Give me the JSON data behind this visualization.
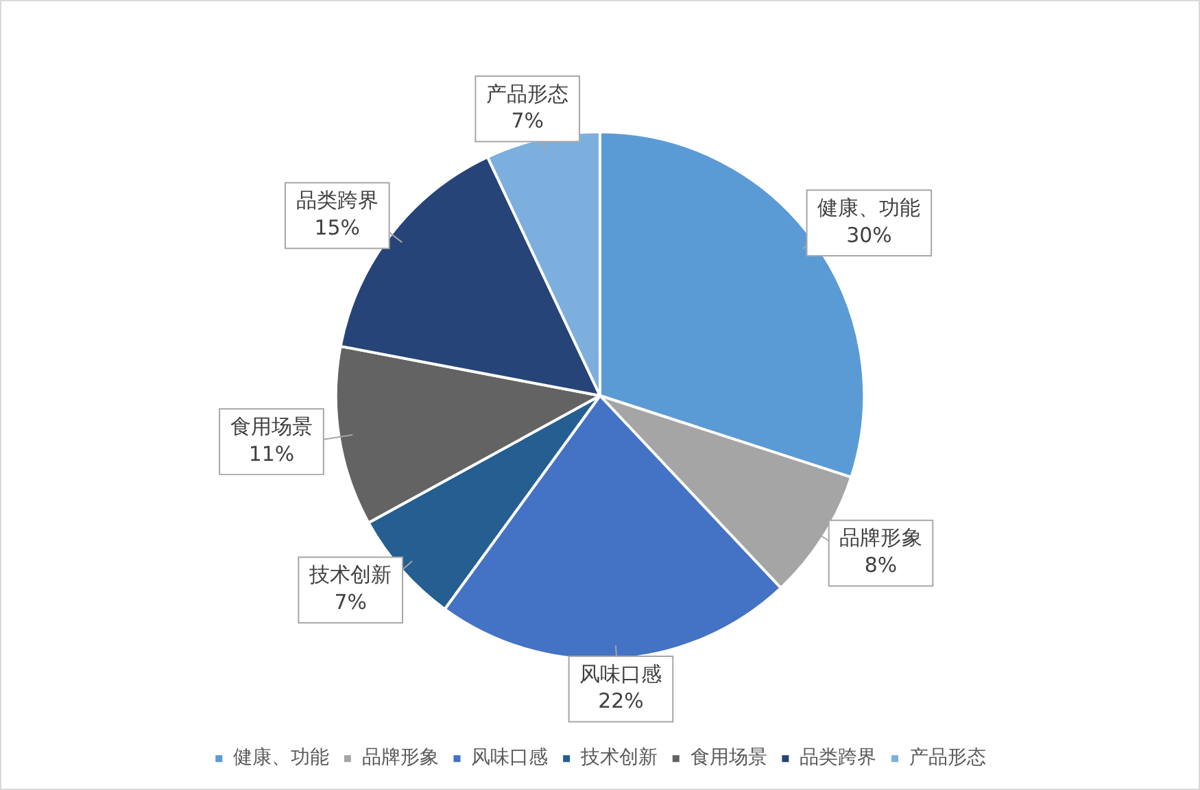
{
  "chart_data": {
    "type": "pie",
    "categories": [
      "健康、功能",
      "品牌形象",
      "风味口感",
      "技术创新",
      "食用场景",
      "品类跨界",
      "产品形态"
    ],
    "values": [
      30,
      8,
      22,
      7,
      11,
      15,
      7
    ],
    "value_labels": [
      "30%",
      "8%",
      "22%",
      "7%",
      "11%",
      "15%",
      "7%"
    ],
    "colors": [
      "#5b9bd5",
      "#a5a5a5",
      "#4472c4",
      "#255e91",
      "#636363",
      "#264478",
      "#7cafdd"
    ],
    "legend": "bottom"
  }
}
